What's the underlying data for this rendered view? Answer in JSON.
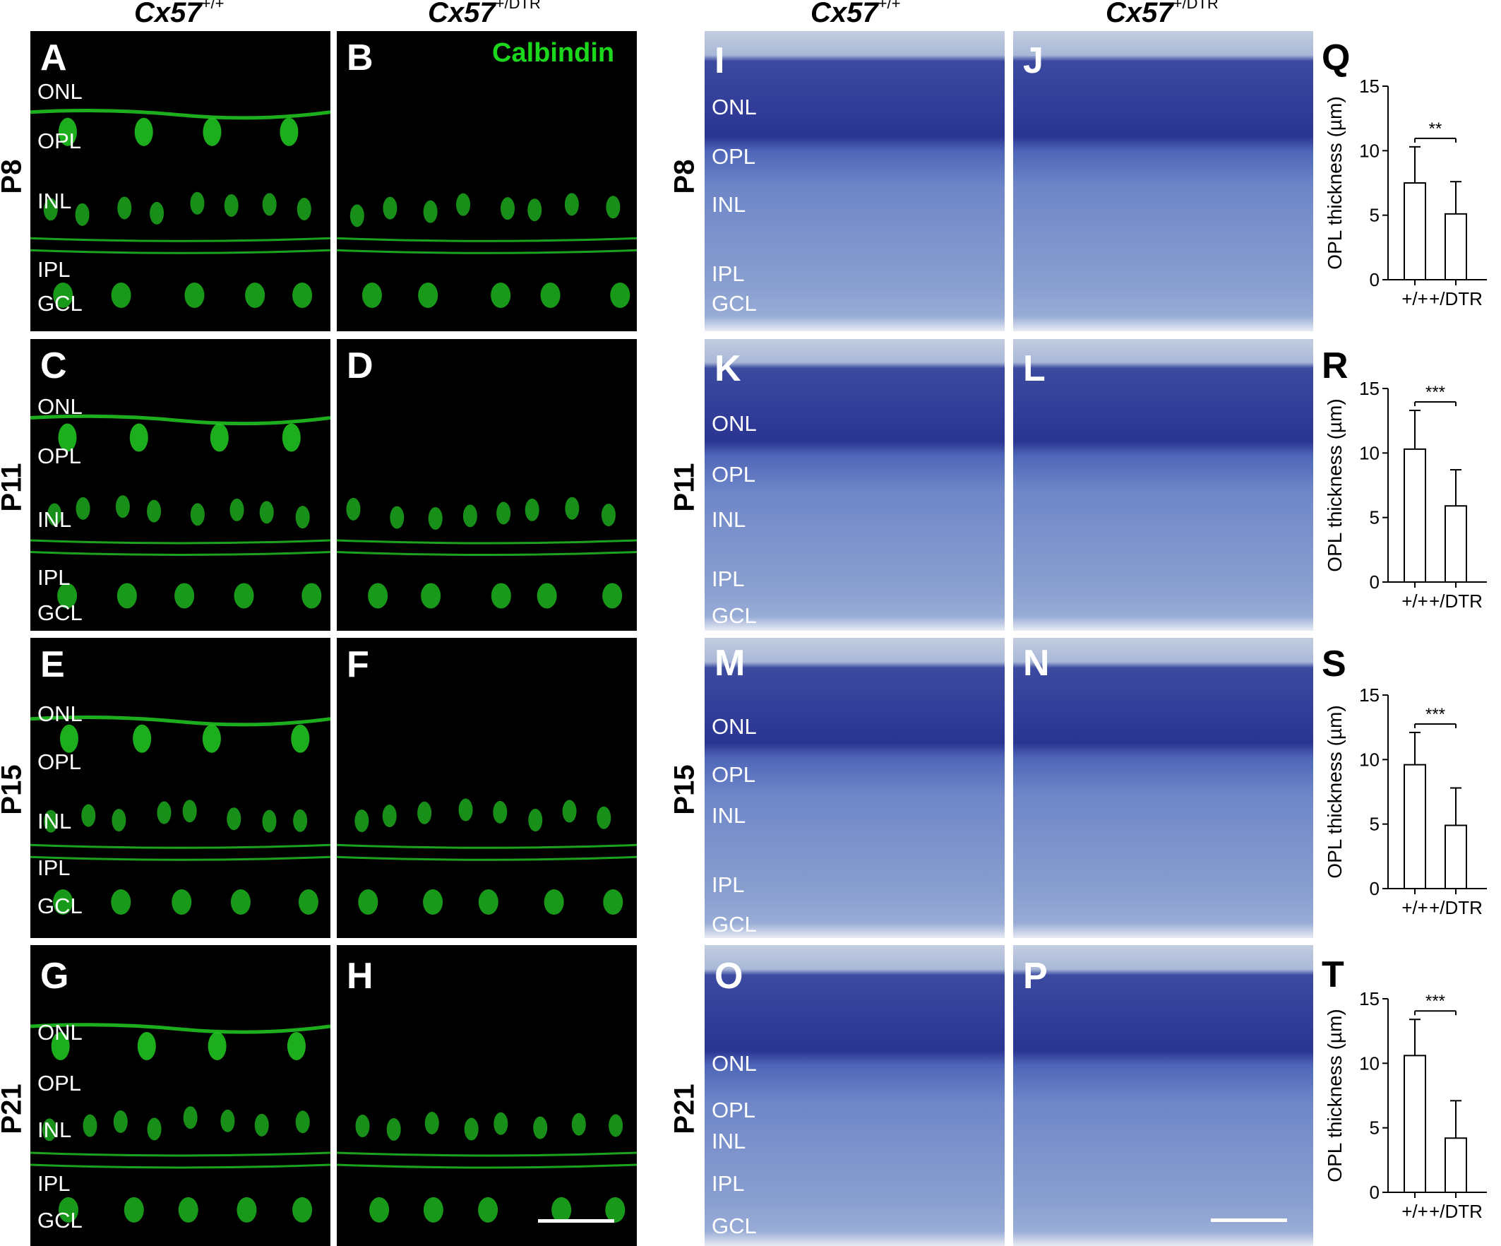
{
  "headers": {
    "left_wt": {
      "base": "Cx57",
      "sup": "+/+"
    },
    "left_dtr": {
      "base": "Cx57",
      "sup": "+/DTR"
    },
    "right_wt": {
      "base": "Cx57",
      "sup": "+/+"
    },
    "right_dtr": {
      "base": "Cx57",
      "sup": "+/DTR"
    }
  },
  "ages": [
    "P8",
    "P11",
    "P15",
    "P21"
  ],
  "stain_label": "Calbindin",
  "colors": {
    "fluorescence": "#22cc22",
    "stain_label": "#1cd81c",
    "histology": "#2a3592"
  },
  "fluor_panels": [
    {
      "letter": "A",
      "layers": [
        "ONL",
        "OPL",
        "INL",
        "IPL",
        "GCL"
      ]
    },
    {
      "letter": "B",
      "layers": []
    },
    {
      "letter": "C",
      "layers": [
        "ONL",
        "OPL",
        "INL",
        "IPL",
        "GCL"
      ]
    },
    {
      "letter": "D",
      "layers": []
    },
    {
      "letter": "E",
      "layers": [
        "ONL",
        "OPL",
        "INL",
        "IPL",
        "GCL"
      ]
    },
    {
      "letter": "F",
      "layers": []
    },
    {
      "letter": "G",
      "layers": [
        "ONL",
        "OPL",
        "INL",
        "IPL",
        "GCL"
      ]
    },
    {
      "letter": "H",
      "layers": []
    }
  ],
  "histo_panels": [
    {
      "letter": "I",
      "layers": [
        "ONL",
        "OPL",
        "INL",
        "IPL",
        "GCL"
      ]
    },
    {
      "letter": "J",
      "layers": []
    },
    {
      "letter": "K",
      "layers": [
        "ONL",
        "OPL",
        "INL",
        "IPL",
        "GCL"
      ]
    },
    {
      "letter": "L",
      "layers": []
    },
    {
      "letter": "M",
      "layers": [
        "ONL",
        "OPL",
        "INL",
        "IPL",
        "GCL"
      ]
    },
    {
      "letter": "N",
      "layers": []
    },
    {
      "letter": "O",
      "layers": [
        "ONL",
        "OPL",
        "INL",
        "IPL",
        "GCL"
      ]
    },
    {
      "letter": "P",
      "layers": []
    }
  ],
  "chart_data": [
    {
      "type": "bar",
      "panel": "Q",
      "categories": [
        "+/+",
        "+/DTR"
      ],
      "values": [
        7.5,
        5.1
      ],
      "errors": [
        2.8,
        2.5
      ],
      "ylabel": "OPL thickness (µm)",
      "ylim": [
        0,
        15
      ],
      "yticks": [
        0,
        5,
        10,
        15
      ],
      "significance": "**"
    },
    {
      "type": "bar",
      "panel": "R",
      "categories": [
        "+/+",
        "+/DTR"
      ],
      "values": [
        10.3,
        5.9
      ],
      "errors": [
        3.0,
        2.8
      ],
      "ylabel": "OPL thickness (µm)",
      "ylim": [
        0,
        15
      ],
      "yticks": [
        0,
        5,
        10,
        15
      ],
      "significance": "***"
    },
    {
      "type": "bar",
      "panel": "S",
      "categories": [
        "+/+",
        "+/DTR"
      ],
      "values": [
        9.6,
        4.9
      ],
      "errors": [
        2.5,
        2.9
      ],
      "ylabel": "OPL thickness (µm)",
      "ylim": [
        0,
        15
      ],
      "yticks": [
        0,
        5,
        10,
        15
      ],
      "significance": "***"
    },
    {
      "type": "bar",
      "panel": "T",
      "categories": [
        "+/+",
        "+/DTR"
      ],
      "values": [
        10.6,
        4.2
      ],
      "errors": [
        2.8,
        2.9
      ],
      "ylabel": "OPL thickness (µm)",
      "ylim": [
        0,
        15
      ],
      "yticks": [
        0,
        5,
        10,
        15
      ],
      "significance": "***"
    }
  ]
}
